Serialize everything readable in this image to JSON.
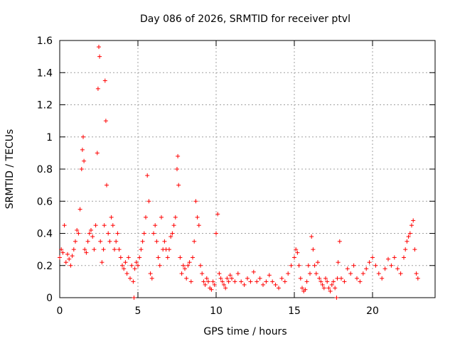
{
  "chart_data": {
    "type": "scatter",
    "title": "Day 086 of 2026, SRMTID for receiver ptvl",
    "xlabel": "GPS time / hours",
    "ylabel": "SRMTID / TECUs",
    "xlim": [
      0,
      24
    ],
    "ylim": [
      0,
      1.6
    ],
    "xticks": [
      0,
      5,
      10,
      15,
      20
    ],
    "xtick_labels": [
      "0",
      "5",
      "10",
      "15",
      "20"
    ],
    "yticks": [
      0,
      0.2,
      0.4,
      0.6,
      0.8,
      1,
      1.2,
      1.4,
      1.6
    ],
    "ytick_labels": [
      "0",
      "0.2",
      "0.4",
      "0.6",
      "0.8",
      "1",
      "1.2",
      "1.4",
      "1.6"
    ],
    "grid": true,
    "marker": "+",
    "marker_color": "#ff0000",
    "series": [
      {
        "name": "SRMTID",
        "x": [
          0.0,
          0.1,
          0.2,
          0.3,
          0.4,
          0.5,
          0.6,
          0.7,
          0.8,
          0.9,
          1.0,
          1.1,
          1.2,
          1.3,
          1.4,
          1.45,
          1.5,
          1.55,
          1.6,
          1.7,
          1.8,
          1.9,
          2.0,
          2.1,
          2.2,
          2.3,
          2.4,
          2.45,
          2.5,
          2.55,
          2.6,
          2.7,
          2.8,
          2.85,
          2.9,
          2.95,
          3.0,
          3.1,
          3.2,
          3.3,
          3.4,
          3.5,
          3.6,
          3.7,
          3.8,
          3.9,
          4.0,
          4.1,
          4.2,
          4.3,
          4.4,
          4.5,
          4.6,
          4.7,
          4.75,
          4.8,
          4.9,
          5.0,
          5.1,
          5.2,
          5.3,
          5.4,
          5.5,
          5.6,
          5.7,
          5.8,
          5.9,
          6.0,
          6.1,
          6.2,
          6.3,
          6.4,
          6.5,
          6.6,
          6.7,
          6.8,
          6.9,
          7.0,
          7.1,
          7.2,
          7.3,
          7.4,
          7.5,
          7.55,
          7.6,
          7.7,
          7.8,
          7.9,
          8.0,
          8.1,
          8.2,
          8.3,
          8.4,
          8.5,
          8.6,
          8.7,
          8.8,
          8.9,
          9.0,
          9.1,
          9.2,
          9.3,
          9.4,
          9.5,
          9.6,
          9.7,
          9.8,
          9.9,
          10.0,
          10.1,
          10.2,
          10.3,
          10.4,
          10.5,
          10.6,
          10.7,
          10.8,
          10.9,
          11.0,
          11.2,
          11.4,
          11.6,
          11.8,
          12.0,
          12.2,
          12.4,
          12.6,
          12.8,
          13.0,
          13.2,
          13.4,
          13.6,
          13.8,
          14.0,
          14.2,
          14.4,
          14.6,
          14.8,
          15.0,
          15.1,
          15.2,
          15.3,
          15.4,
          15.5,
          15.6,
          15.7,
          15.8,
          15.9,
          16.0,
          16.1,
          16.2,
          16.3,
          16.4,
          16.5,
          16.6,
          16.7,
          16.8,
          16.9,
          17.0,
          17.1,
          17.2,
          17.3,
          17.4,
          17.5,
          17.6,
          17.7,
          17.75,
          17.8,
          17.9,
          18.0,
          18.2,
          18.4,
          18.6,
          18.8,
          19.0,
          19.2,
          19.4,
          19.6,
          19.8,
          20.0,
          20.2,
          20.4,
          20.6,
          20.8,
          21.0,
          21.2,
          21.4,
          21.6,
          21.8,
          22.0,
          22.1,
          22.2,
          22.3,
          22.4,
          22.5,
          22.6,
          22.7,
          22.8,
          22.9
        ],
        "y": [
          0.25,
          0.3,
          0.28,
          0.45,
          0.22,
          0.27,
          0.24,
          0.2,
          0.26,
          0.3,
          0.35,
          0.42,
          0.4,
          0.55,
          0.8,
          0.92,
          1.0,
          0.85,
          0.3,
          0.28,
          0.35,
          0.4,
          0.42,
          0.38,
          0.3,
          0.45,
          0.9,
          1.3,
          1.56,
          1.5,
          0.35,
          0.22,
          0.3,
          0.45,
          1.35,
          1.1,
          0.7,
          0.4,
          0.35,
          0.5,
          0.45,
          0.3,
          0.35,
          0.4,
          0.3,
          0.25,
          0.2,
          0.18,
          0.22,
          0.15,
          0.25,
          0.12,
          0.2,
          0.1,
          0.0,
          0.18,
          0.22,
          0.2,
          0.25,
          0.3,
          0.35,
          0.4,
          0.5,
          0.76,
          0.6,
          0.15,
          0.12,
          0.4,
          0.45,
          0.35,
          0.25,
          0.2,
          0.5,
          0.3,
          0.35,
          0.3,
          0.25,
          0.3,
          0.38,
          0.4,
          0.45,
          0.5,
          0.8,
          0.88,
          0.7,
          0.25,
          0.15,
          0.2,
          0.18,
          0.12,
          0.2,
          0.22,
          0.1,
          0.25,
          0.35,
          0.6,
          0.5,
          0.45,
          0.2,
          0.15,
          0.1,
          0.08,
          0.12,
          0.1,
          0.06,
          0.05,
          0.1,
          0.08,
          0.4,
          0.52,
          0.15,
          0.12,
          0.1,
          0.08,
          0.06,
          0.12,
          0.1,
          0.14,
          0.12,
          0.1,
          0.15,
          0.1,
          0.08,
          0.12,
          0.1,
          0.16,
          0.1,
          0.12,
          0.08,
          0.1,
          0.14,
          0.1,
          0.08,
          0.06,
          0.12,
          0.1,
          0.15,
          0.2,
          0.25,
          0.3,
          0.28,
          0.2,
          0.12,
          0.06,
          0.04,
          0.05,
          0.1,
          0.2,
          0.15,
          0.38,
          0.3,
          0.2,
          0.15,
          0.22,
          0.12,
          0.1,
          0.08,
          0.06,
          0.12,
          0.1,
          0.06,
          0.04,
          0.08,
          0.1,
          0.06,
          0.0,
          0.12,
          0.22,
          0.35,
          0.12,
          0.1,
          0.18,
          0.15,
          0.2,
          0.12,
          0.1,
          0.15,
          0.18,
          0.22,
          0.25,
          0.2,
          0.15,
          0.12,
          0.18,
          0.24,
          0.2,
          0.25,
          0.18,
          0.15,
          0.25,
          0.3,
          0.35,
          0.38,
          0.4,
          0.45,
          0.48,
          0.3,
          0.15,
          0.12
        ]
      }
    ]
  }
}
